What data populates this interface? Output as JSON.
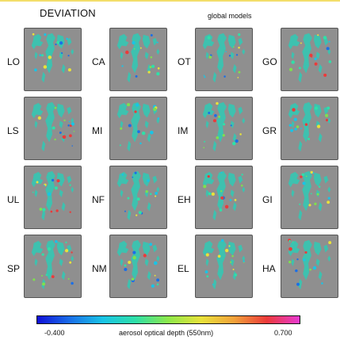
{
  "header": {
    "title": "DEVIATION",
    "subtitle": "global models"
  },
  "chart_data": {
    "type": "heatmap",
    "title": "DEVIATION",
    "subtitle": "global models",
    "layout": {
      "rows": 4,
      "columns": 4
    },
    "panels": [
      [
        "LO",
        "CA",
        "OT",
        "GO"
      ],
      [
        "LS",
        "MI",
        "IM",
        "GR"
      ],
      [
        "UL",
        "NF",
        "EH",
        "GI"
      ],
      [
        "SP",
        "NM",
        "EL",
        "HA"
      ]
    ],
    "colorbar": {
      "label": "aerosol optical depth (550nm)",
      "min_label": "-0.400",
      "max_label": "0.700",
      "range": [
        -0.4,
        0.7
      ],
      "colors": [
        "#1010d8",
        "#1a6fe8",
        "#19c4e6",
        "#2fe0a8",
        "#8ee84a",
        "#e8e23a",
        "#f2a23a",
        "#ec3a3a",
        "#e83ad2"
      ]
    },
    "background_color": "#8f8f8f",
    "dominant_color": "#35c7b3"
  }
}
